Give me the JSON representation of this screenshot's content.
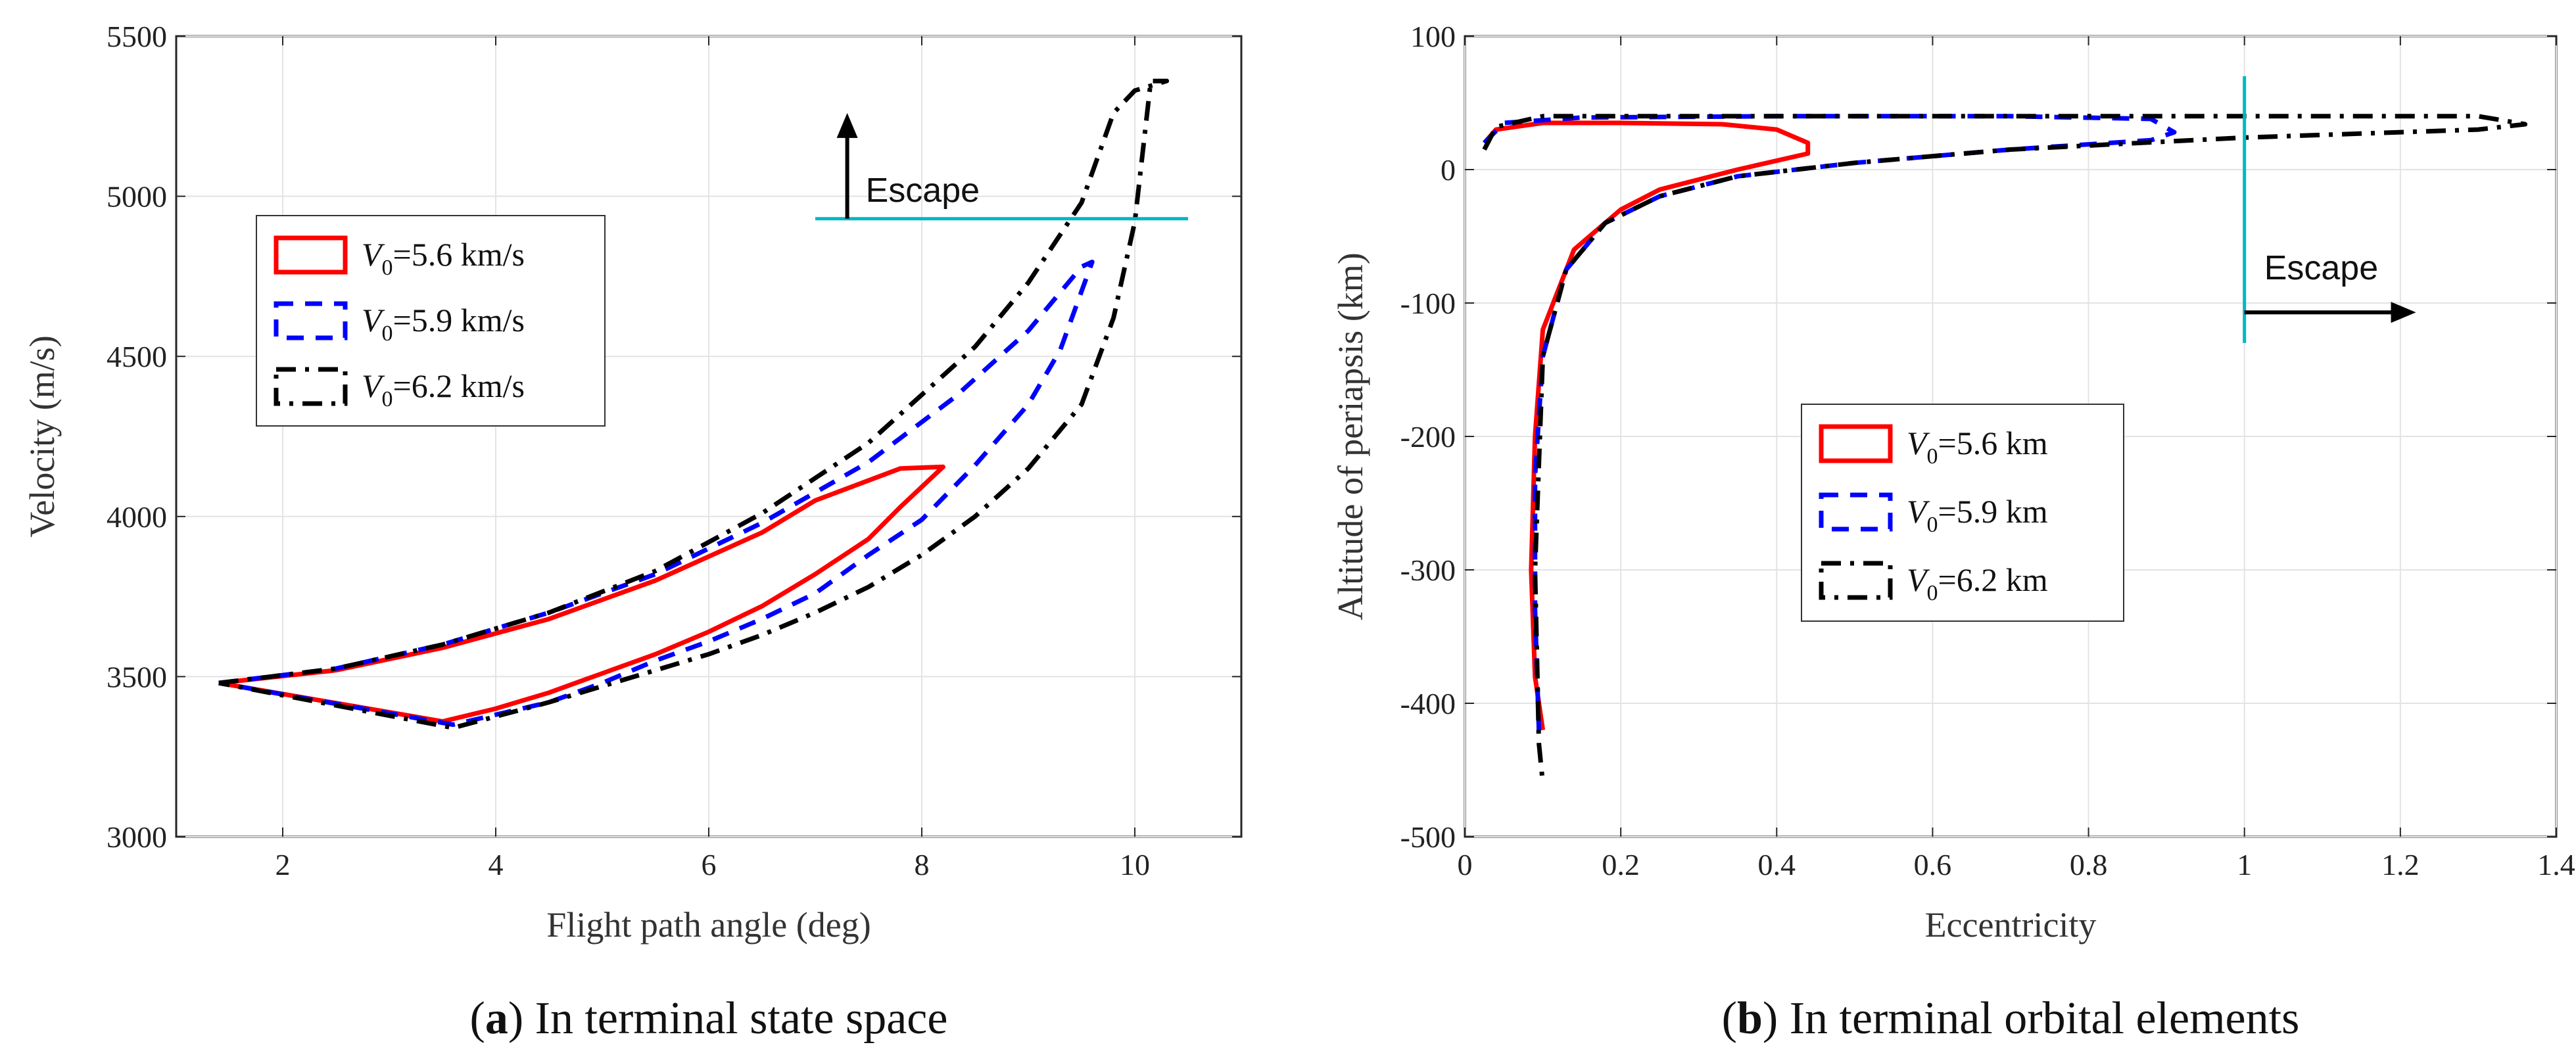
{
  "chart_data": [
    {
      "type": "line",
      "caption_letter": "a",
      "caption_text": ") In terminal state space",
      "caption_open": "(",
      "xlabel": "Flight path angle (deg)",
      "ylabel": "Velocity (m/s)",
      "xlim": [
        1,
        11
      ],
      "ylim": [
        3000,
        5500
      ],
      "xticks": [
        2,
        4,
        6,
        8,
        10
      ],
      "yticks": [
        3000,
        3500,
        4000,
        4500,
        5000,
        5500
      ],
      "grid": true,
      "legend_position": "upper-left",
      "legend": [
        {
          "prefix": "V",
          "sub": "0",
          "suffix": "=5.6 km/s",
          "color": "#ff0000",
          "dash": "solid"
        },
        {
          "prefix": "V",
          "sub": "0",
          "suffix": "=5.9 km/s",
          "color": "#0000ff",
          "dash": "dashed"
        },
        {
          "prefix": "V",
          "sub": "0",
          "suffix": "=6.2 km/s",
          "color": "#000000",
          "dash": "dashdot"
        }
      ],
      "annotation": {
        "text": "Escape",
        "line_y": 4930,
        "line_x": [
          7.0,
          10.5
        ],
        "arrow_x": 7.3,
        "arrow_y": [
          4930,
          5260
        ],
        "line_color": "#00b7c3"
      },
      "series": [
        {
          "name": "V0=5.6 km/s",
          "color": "#ff0000",
          "x": [
            1.4,
            2.5,
            3.5,
            4.5,
            5.5,
            6.5,
            7.0,
            7.8,
            8.2,
            7.8,
            7.5,
            7.0,
            6.5,
            6.0,
            5.5,
            5.0,
            4.5,
            4.0,
            3.5,
            1.4
          ],
          "y": [
            3480,
            3520,
            3590,
            3680,
            3800,
            3950,
            4050,
            4150,
            4155,
            4030,
            3930,
            3820,
            3720,
            3640,
            3570,
            3510,
            3450,
            3400,
            3360,
            3480
          ]
        },
        {
          "name": "V0=5.9 km/s",
          "color": "#0000ff",
          "x": [
            1.4,
            2.5,
            3.5,
            4.5,
            5.5,
            6.5,
            7.5,
            8.3,
            9.0,
            9.5,
            9.6,
            9.3,
            9.0,
            8.5,
            8.0,
            7.5,
            7.0,
            6.5,
            6.0,
            5.5,
            5.0,
            4.5,
            3.6,
            1.4
          ],
          "y": [
            3480,
            3525,
            3600,
            3700,
            3820,
            3980,
            4170,
            4370,
            4580,
            4780,
            4795,
            4520,
            4350,
            4160,
            3990,
            3880,
            3760,
            3680,
            3610,
            3550,
            3480,
            3420,
            3350,
            3480
          ]
        },
        {
          "name": "V0=6.2 km/s",
          "color": "#000000",
          "x": [
            1.4,
            2.5,
            3.5,
            4.5,
            5.5,
            6.5,
            7.5,
            8.5,
            9.0,
            9.5,
            9.8,
            10.0,
            10.3,
            10.15,
            10.0,
            9.8,
            9.5,
            9.0,
            8.5,
            8.0,
            7.5,
            7.0,
            6.5,
            6.0,
            5.5,
            5.0,
            4.5,
            3.6,
            1.4
          ],
          "y": [
            3480,
            3525,
            3600,
            3700,
            3830,
            4010,
            4230,
            4530,
            4730,
            4980,
            5260,
            5330,
            5360,
            5360,
            4920,
            4620,
            4350,
            4150,
            4000,
            3880,
            3780,
            3700,
            3630,
            3570,
            3520,
            3470,
            3420,
            3340,
            3480
          ]
        }
      ]
    },
    {
      "type": "line",
      "caption_letter": "b",
      "caption_text": ") In terminal orbital elements",
      "caption_open": "(",
      "xlabel": "Eccentricity",
      "ylabel": "Altitude of periapsis (km)",
      "xlim": [
        0,
        1.4
      ],
      "ylim": [
        -500,
        100
      ],
      "xticks": [
        0,
        0.2,
        0.4,
        0.6,
        0.8,
        1,
        1.2,
        1.4
      ],
      "xtick_labels": [
        "0",
        "0.2",
        "0.4",
        "0.6",
        "0.8",
        "1",
        "1.2",
        "1.4"
      ],
      "yticks": [
        -500,
        -400,
        -300,
        -200,
        -100,
        0,
        100
      ],
      "grid": true,
      "legend_position": "center",
      "legend": [
        {
          "prefix": "V",
          "sub": "0",
          "suffix": "=5.6 km",
          "color": "#ff0000",
          "dash": "solid"
        },
        {
          "prefix": "V",
          "sub": "0",
          "suffix": "=5.9 km",
          "color": "#0000ff",
          "dash": "dashed"
        },
        {
          "prefix": "V",
          "sub": "0",
          "suffix": "=6.2 km",
          "color": "#000000",
          "dash": "dashdot"
        }
      ],
      "annotation": {
        "text": "Escape",
        "line_x": 1.0,
        "line_y": [
          -130,
          70
        ],
        "arrow_y": -107,
        "arrow_x": [
          1.0,
          1.22
        ],
        "line_color": "#00b7c3"
      },
      "series": [
        {
          "name": "V0=5.6 km",
          "color": "#ff0000",
          "x": [
            0.025,
            0.04,
            0.1,
            0.2,
            0.33,
            0.4,
            0.44,
            0.44,
            0.35,
            0.25,
            0.2,
            0.14,
            0.1,
            0.09,
            0.085,
            0.09,
            0.1
          ],
          "y": [
            20,
            30,
            35,
            35,
            34,
            30,
            20,
            12,
            0,
            -15,
            -30,
            -60,
            -120,
            -200,
            -300,
            -380,
            -420
          ]
        },
        {
          "name": "V0=5.9 km",
          "color": "#0000ff",
          "x": [
            0.025,
            0.05,
            0.15,
            0.4,
            0.7,
            0.88,
            0.91,
            0.88,
            0.7,
            0.5,
            0.35,
            0.25,
            0.18,
            0.13,
            0.1,
            0.09,
            0.09,
            0.095
          ],
          "y": [
            20,
            35,
            39,
            40,
            40,
            38,
            28,
            22,
            15,
            5,
            -5,
            -20,
            -40,
            -75,
            -140,
            -230,
            -330,
            -420
          ]
        },
        {
          "name": "V0=6.2 km",
          "color": "#000000",
          "x": [
            0.025,
            0.04,
            0.1,
            0.5,
            1.0,
            1.3,
            1.36,
            1.3,
            1.0,
            0.7,
            0.5,
            0.35,
            0.25,
            0.18,
            0.13,
            0.1,
            0.09,
            0.095,
            0.1
          ],
          "y": [
            15,
            32,
            40,
            40,
            40,
            40,
            34,
            30,
            24,
            15,
            5,
            -5,
            -20,
            -40,
            -75,
            -140,
            -300,
            -430,
            -460
          ]
        }
      ]
    }
  ]
}
